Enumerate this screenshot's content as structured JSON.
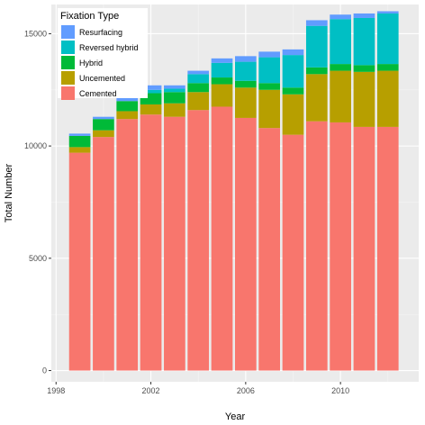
{
  "chart_data": {
    "type": "bar",
    "stacked": true,
    "xlabel": "Year",
    "ylabel": "Total Number",
    "xlim": [
      1997.8,
      2013.3
    ],
    "ylim": [
      -500,
      16300
    ],
    "x_ticks": [
      1998,
      2002,
      2006,
      2010
    ],
    "x_tick_labels": [
      "1998",
      "2002",
      "2006",
      "2010"
    ],
    "y_ticks": [
      0,
      5000,
      10000,
      15000
    ],
    "y_tick_labels": [
      "0",
      "5000",
      "10000",
      "15000"
    ],
    "grid": true,
    "legend_position": "top-left",
    "legend_title": "Fixation Type",
    "x": [
      1999,
      2000,
      2001,
      2002,
      2003,
      2004,
      2005,
      2006,
      2007,
      2008,
      2009,
      2010,
      2011,
      2012
    ],
    "series": [
      {
        "name": "Cemented",
        "color": "#F8766D",
        "values": [
          9700,
          10400,
          11200,
          11400,
          11300,
          11600,
          11750,
          11250,
          10800,
          10500,
          11100,
          11050,
          10850,
          10850
        ]
      },
      {
        "name": "Uncemented",
        "color": "#B79F00",
        "values": [
          250,
          300,
          350,
          450,
          600,
          800,
          1000,
          1350,
          1700,
          1800,
          2100,
          2300,
          2450,
          2500
        ]
      },
      {
        "name": "Hybrid",
        "color": "#00BA38",
        "values": [
          500,
          500,
          450,
          500,
          500,
          400,
          300,
          300,
          300,
          300,
          300,
          300,
          300,
          300
        ]
      },
      {
        "name": "Reversed hybrid",
        "color": "#00BFC4",
        "values": [
          0,
          0,
          0,
          150,
          150,
          400,
          650,
          850,
          1150,
          1450,
          1850,
          2000,
          2100,
          2250
        ]
      },
      {
        "name": "Resurfacing",
        "color": "#619CFF",
        "values": [
          100,
          100,
          150,
          200,
          150,
          150,
          200,
          250,
          250,
          250,
          250,
          200,
          200,
          100
        ]
      }
    ],
    "legend_order": [
      "Resurfacing",
      "Reversed hybrid",
      "Hybrid",
      "Uncemented",
      "Cemented"
    ]
  },
  "colors": {
    "panel_background": "#EBEBEB",
    "grid_major": "#FFFFFF",
    "grid_minor": "#F5F5F5"
  }
}
